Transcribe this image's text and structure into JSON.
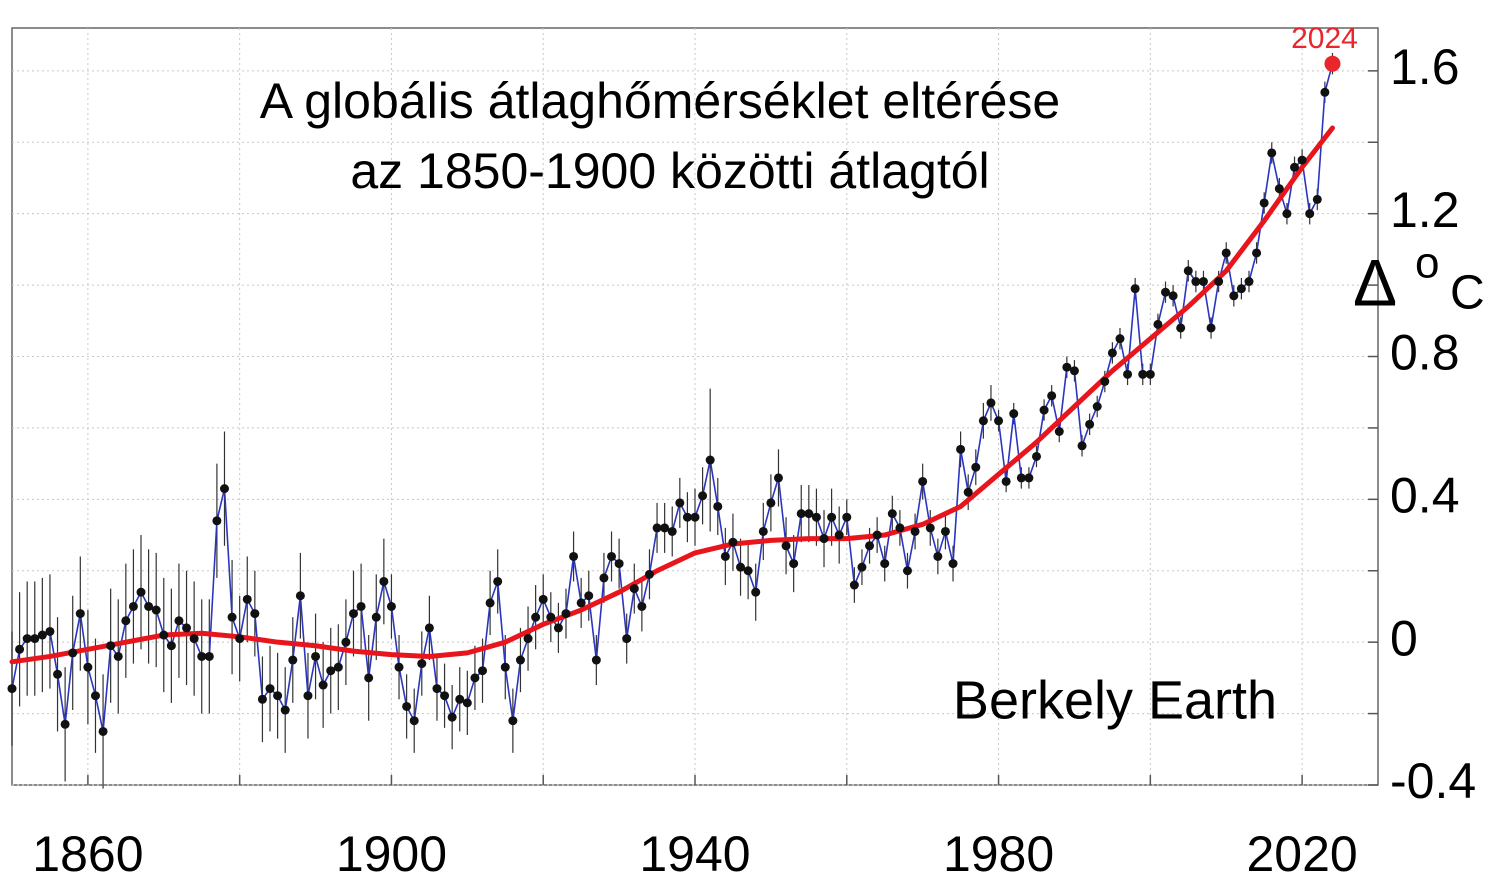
{
  "chart_data": {
    "type": "line",
    "title": [
      "A globális átlaghőmérséklet eltérése",
      "az 1850-1900 közötti átlagtól"
    ],
    "ylabel": [
      "Δ",
      "o",
      "C"
    ],
    "annotation": "Berkely Earth",
    "xlim": [
      1850,
      2030
    ],
    "xticks": [
      1860,
      1900,
      1940,
      1980,
      2020
    ],
    "xminorticks": [
      1880,
      1920,
      1960,
      2000
    ],
    "ylim": [
      -0.4,
      1.72
    ],
    "yticks": [
      -0.4,
      0,
      0.4,
      0.8,
      1.2,
      1.6
    ],
    "yminorticks": [
      -0.2,
      0.2,
      0.6,
      1.0,
      1.4
    ],
    "grid": true,
    "color": "#2a35c0",
    "highlight_color": "#e8262b",
    "x": [
      1850,
      1851,
      1852,
      1853,
      1854,
      1855,
      1856,
      1857,
      1858,
      1859,
      1860,
      1861,
      1862,
      1863,
      1864,
      1865,
      1866,
      1867,
      1868,
      1869,
      1870,
      1871,
      1872,
      1873,
      1874,
      1875,
      1876,
      1877,
      1878,
      1879,
      1880,
      1881,
      1882,
      1883,
      1884,
      1885,
      1886,
      1887,
      1888,
      1889,
      1890,
      1891,
      1892,
      1893,
      1894,
      1895,
      1896,
      1897,
      1898,
      1899,
      1900,
      1901,
      1902,
      1903,
      1904,
      1905,
      1906,
      1907,
      1908,
      1909,
      1910,
      1911,
      1912,
      1913,
      1914,
      1915,
      1916,
      1917,
      1918,
      1919,
      1920,
      1921,
      1922,
      1923,
      1924,
      1925,
      1926,
      1927,
      1928,
      1929,
      1930,
      1931,
      1932,
      1933,
      1934,
      1935,
      1936,
      1937,
      1938,
      1939,
      1940,
      1941,
      1942,
      1943,
      1944,
      1945,
      1946,
      1947,
      1948,
      1949,
      1950,
      1951,
      1952,
      1953,
      1954,
      1955,
      1956,
      1957,
      1958,
      1959,
      1960,
      1961,
      1962,
      1963,
      1964,
      1965,
      1966,
      1967,
      1968,
      1969,
      1970,
      1971,
      1972,
      1973,
      1974,
      1975,
      1976,
      1977,
      1978,
      1979,
      1980,
      1981,
      1982,
      1983,
      1984,
      1985,
      1986,
      1987,
      1988,
      1989,
      1990,
      1991,
      1992,
      1993,
      1994,
      1995,
      1996,
      1997,
      1998,
      1999,
      2000,
      2001,
      2002,
      2003,
      2004,
      2005,
      2006,
      2007,
      2008,
      2009,
      2010,
      2011,
      2012,
      2013,
      2014,
      2015,
      2016,
      2017,
      2018,
      2019,
      2020,
      2021,
      2022,
      2023,
      2024
    ],
    "values": [
      -0.13,
      -0.02,
      0.01,
      0.01,
      0.02,
      0.03,
      -0.09,
      -0.23,
      -0.03,
      0.08,
      -0.07,
      -0.15,
      -0.25,
      -0.01,
      -0.04,
      0.06,
      0.1,
      0.14,
      0.1,
      0.09,
      0.02,
      -0.01,
      0.06,
      0.04,
      0.01,
      -0.04,
      -0.04,
      0.34,
      0.43,
      0.07,
      0.01,
      0.12,
      0.08,
      -0.16,
      -0.13,
      -0.15,
      -0.19,
      -0.05,
      0.13,
      -0.15,
      -0.04,
      -0.12,
      -0.08,
      -0.07,
      0.0,
      0.08,
      0.1,
      -0.1,
      0.07,
      0.17,
      0.1,
      -0.07,
      -0.18,
      -0.22,
      -0.06,
      0.04,
      -0.13,
      -0.15,
      -0.21,
      -0.16,
      -0.17,
      -0.1,
      -0.08,
      0.11,
      0.17,
      -0.07,
      -0.22,
      -0.05,
      0.01,
      0.07,
      0.12,
      0.07,
      0.04,
      0.08,
      0.24,
      0.11,
      0.13,
      -0.05,
      0.18,
      0.24,
      0.22,
      0.01,
      0.15,
      0.1,
      0.19,
      0.32,
      0.32,
      0.31,
      0.39,
      0.35,
      0.35,
      0.41,
      0.51,
      0.38,
      0.24,
      0.28,
      0.21,
      0.2,
      0.14,
      0.31,
      0.39,
      0.46,
      0.27,
      0.22,
      0.36,
      0.36,
      0.35,
      0.29,
      0.35,
      0.3,
      0.35,
      0.16,
      0.21,
      0.27,
      0.3,
      0.22,
      0.36,
      0.32,
      0.2,
      0.31,
      0.45,
      0.32,
      0.24,
      0.31,
      0.22,
      0.54,
      0.42,
      0.49,
      0.62,
      0.67,
      0.62,
      0.45,
      0.64,
      0.46,
      0.46,
      0.52,
      0.65,
      0.69,
      0.59,
      0.77,
      0.76,
      0.55,
      0.61,
      0.66,
      0.73,
      0.81,
      0.85,
      0.75,
      0.99,
      0.75,
      0.75,
      0.89,
      0.98,
      0.97,
      0.88,
      1.04,
      1.01,
      1.01,
      0.88,
      1.01,
      1.09,
      0.97,
      0.99,
      1.01,
      1.09,
      1.23,
      1.37,
      1.27,
      1.2,
      1.33,
      1.35,
      1.2,
      1.24,
      1.54,
      1.62
    ],
    "errors": [
      0.16,
      0.16,
      0.16,
      0.16,
      0.16,
      0.16,
      0.16,
      0.16,
      0.16,
      0.16,
      0.16,
      0.16,
      0.16,
      0.16,
      0.16,
      0.16,
      0.16,
      0.16,
      0.16,
      0.16,
      0.16,
      0.16,
      0.16,
      0.16,
      0.16,
      0.16,
      0.16,
      0.16,
      0.16,
      0.16,
      0.12,
      0.12,
      0.12,
      0.12,
      0.12,
      0.12,
      0.12,
      0.12,
      0.12,
      0.12,
      0.12,
      0.12,
      0.12,
      0.12,
      0.12,
      0.12,
      0.12,
      0.12,
      0.12,
      0.12,
      0.09,
      0.09,
      0.09,
      0.09,
      0.09,
      0.09,
      0.09,
      0.09,
      0.09,
      0.09,
      0.09,
      0.09,
      0.09,
      0.09,
      0.09,
      0.09,
      0.09,
      0.09,
      0.09,
      0.09,
      0.07,
      0.07,
      0.07,
      0.07,
      0.07,
      0.07,
      0.07,
      0.07,
      0.07,
      0.07,
      0.07,
      0.07,
      0.07,
      0.07,
      0.07,
      0.07,
      0.07,
      0.07,
      0.07,
      0.07,
      0.08,
      0.08,
      0.2,
      0.08,
      0.08,
      0.08,
      0.08,
      0.08,
      0.08,
      0.08,
      0.08,
      0.08,
      0.08,
      0.08,
      0.08,
      0.08,
      0.08,
      0.08,
      0.08,
      0.08,
      0.05,
      0.05,
      0.05,
      0.05,
      0.05,
      0.05,
      0.05,
      0.05,
      0.05,
      0.05,
      0.05,
      0.05,
      0.05,
      0.05,
      0.05,
      0.05,
      0.05,
      0.05,
      0.05,
      0.05,
      0.03,
      0.03,
      0.03,
      0.03,
      0.03,
      0.03,
      0.03,
      0.03,
      0.03,
      0.03,
      0.03,
      0.03,
      0.03,
      0.03,
      0.03,
      0.03,
      0.03,
      0.03,
      0.03,
      0.03,
      0.03,
      0.03,
      0.03,
      0.03,
      0.03,
      0.03,
      0.03,
      0.03,
      0.03,
      0.03,
      0.03,
      0.03,
      0.03,
      0.03,
      0.03,
      0.03,
      0.03,
      0.03,
      0.03,
      0.03,
      0.03,
      0.03,
      0.03,
      0.03,
      0.03
    ],
    "trend": {
      "color": "#e8161c",
      "x": [
        1850,
        1855,
        1860,
        1865,
        1870,
        1875,
        1880,
        1885,
        1890,
        1895,
        1900,
        1905,
        1910,
        1915,
        1920,
        1925,
        1930,
        1935,
        1940,
        1945,
        1950,
        1955,
        1960,
        1965,
        1970,
        1975,
        1980,
        1985,
        1990,
        1995,
        2000,
        2005,
        2010,
        2015,
        2020,
        2024
      ],
      "values": [
        -0.055,
        -0.04,
        -0.02,
        0.0,
        0.02,
        0.025,
        0.015,
        0.0,
        -0.01,
        -0.025,
        -0.035,
        -0.04,
        -0.03,
        0.0,
        0.05,
        0.09,
        0.14,
        0.2,
        0.25,
        0.275,
        0.285,
        0.29,
        0.29,
        0.3,
        0.33,
        0.38,
        0.47,
        0.56,
        0.66,
        0.76,
        0.85,
        0.94,
        1.04,
        1.18,
        1.33,
        1.44
      ]
    }
  }
}
